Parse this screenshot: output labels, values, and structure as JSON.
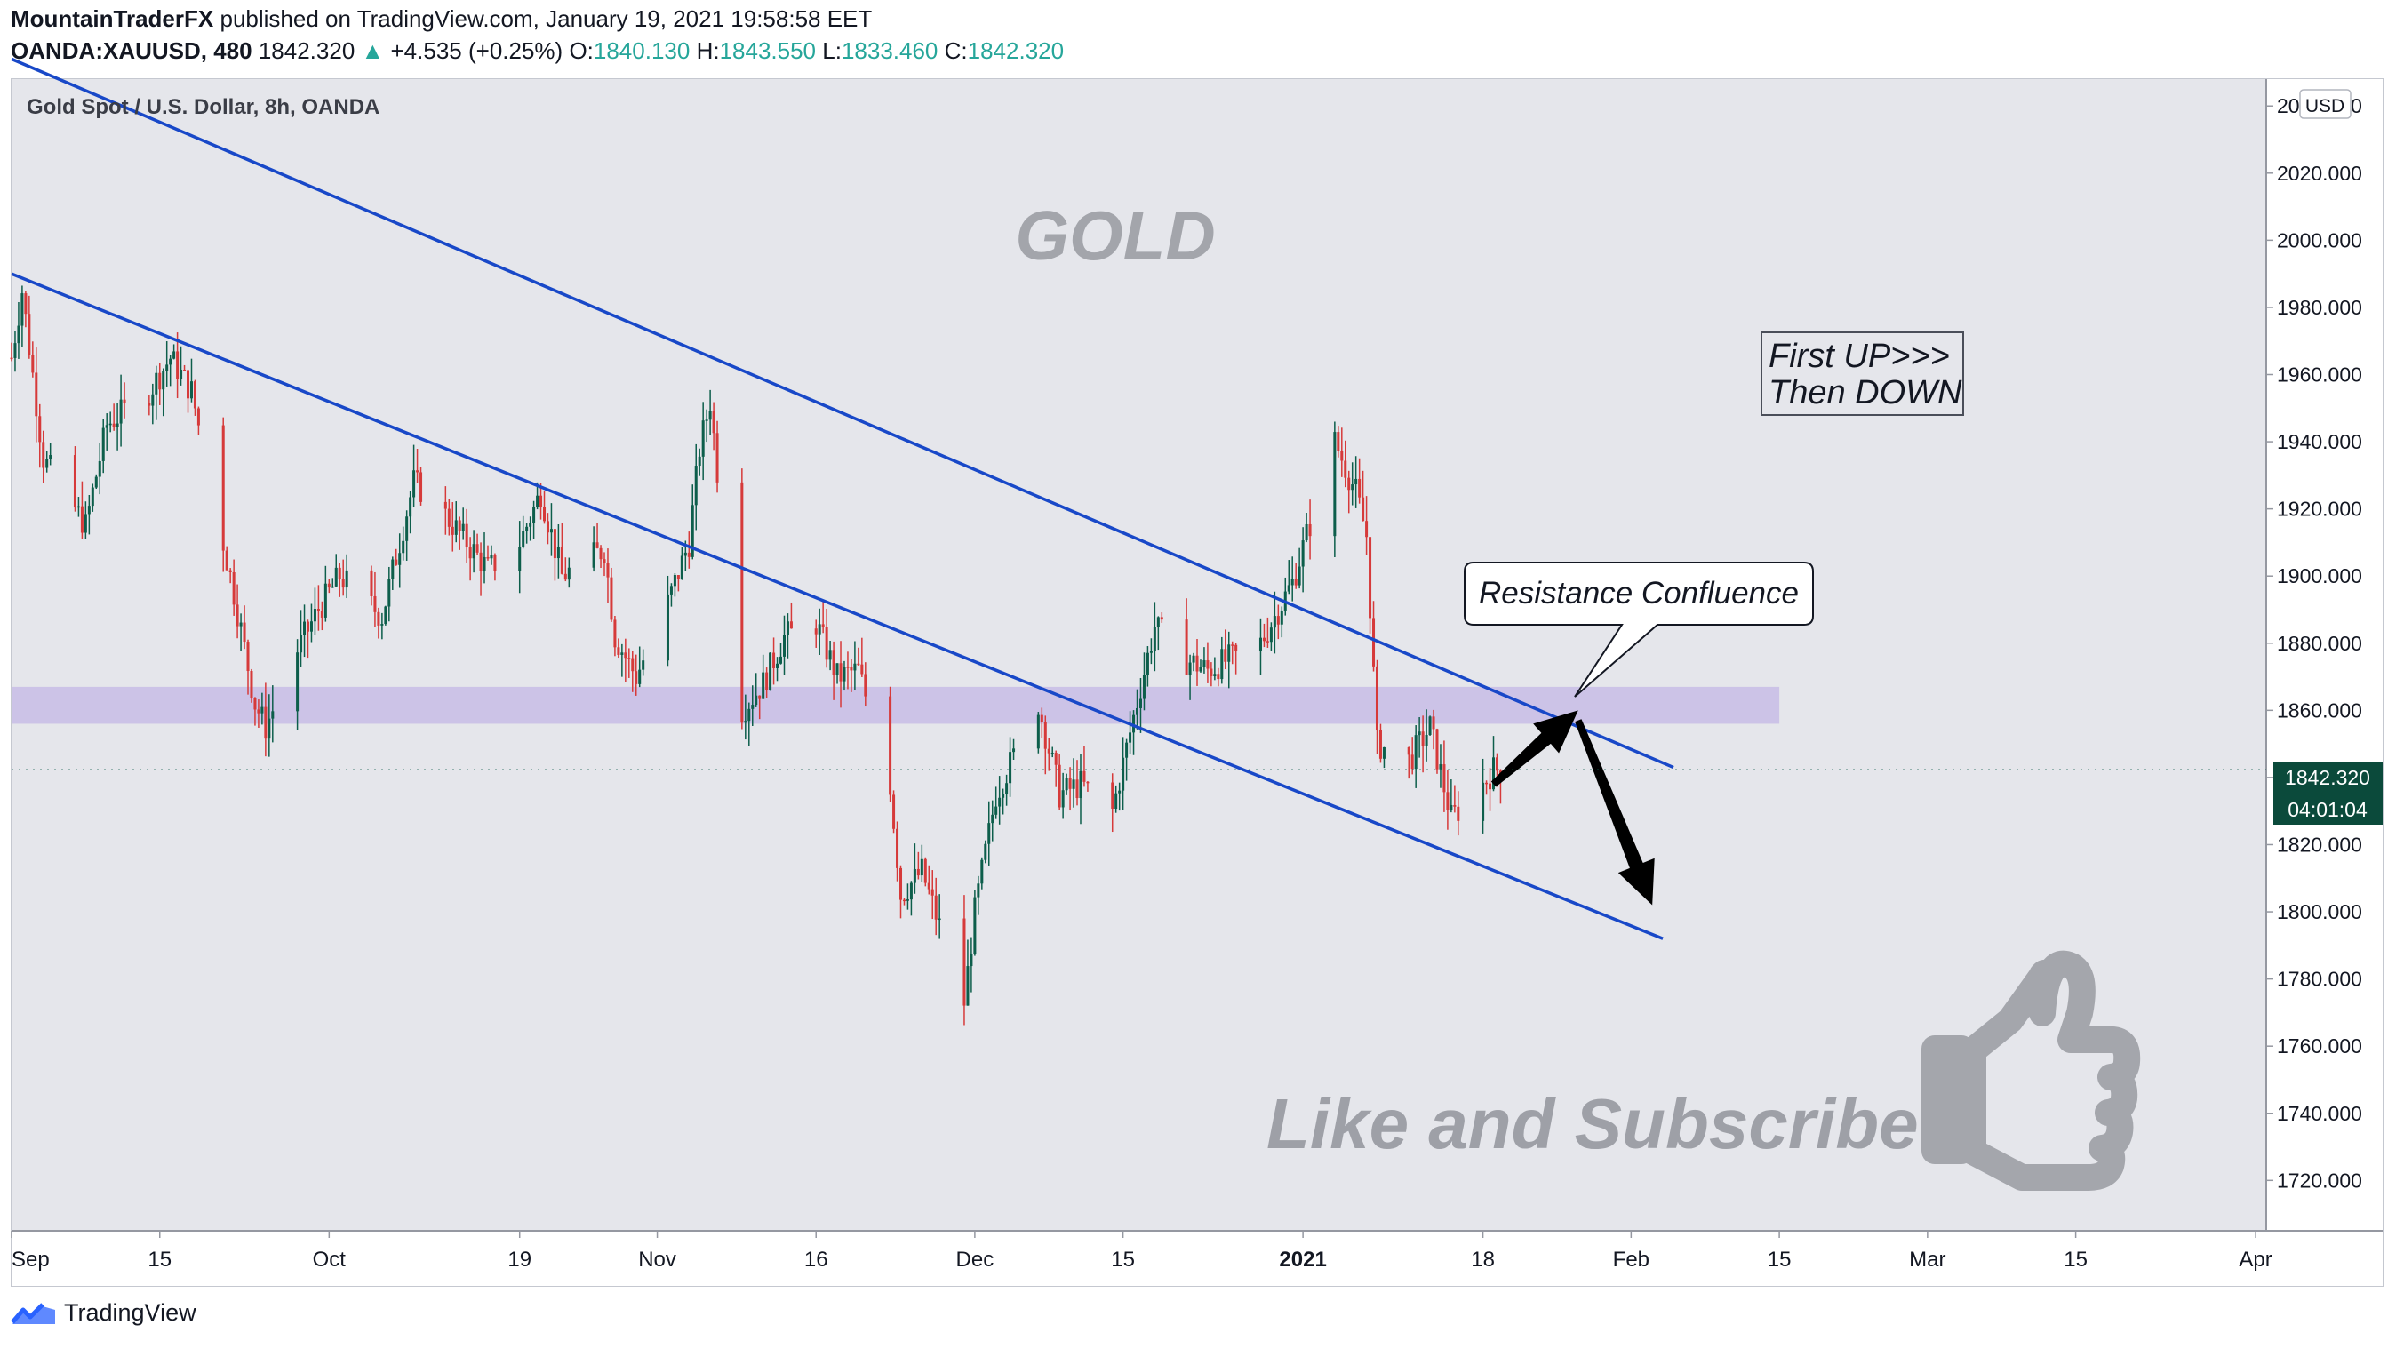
{
  "header": {
    "author": "MountainTraderFX",
    "published_text": "published on TradingView.com, January 19, 2021 19:58:58 EET",
    "symbol": "OANDA:XAUUSD, 480",
    "last": "1842.320",
    "change": "+4.535 (+0.25%)",
    "o_label": "O:",
    "o_value": "1840.130",
    "h_label": "H:",
    "h_value": "1843.550",
    "l_label": "L:",
    "l_value": "1833.460",
    "c_label": "C:",
    "c_value": "1842.320"
  },
  "chart": {
    "legend": "Gold Spot / U.S. Dollar, 8h, OANDA",
    "watermark": "GOLD",
    "currency": "USD",
    "price_tag": "1842.320",
    "countdown": "04:01:04",
    "note_box": [
      "First UP>>>",
      "Then DOWN"
    ],
    "callout": "Resistance Confluence",
    "promo": "Like and Subscribe!"
  },
  "chart_data": {
    "type": "candlestick",
    "title": "Gold Spot / U.S. Dollar, 8h, OANDA",
    "y_axis_ticks": [
      "1720.000",
      "1740.000",
      "1760.000",
      "1780.000",
      "1800.000",
      "1820.000",
      "1840.000",
      "1860.000",
      "1880.000",
      "1900.000",
      "1920.000",
      "1940.000",
      "1960.000",
      "1980.000",
      "2000.000",
      "2020.000",
      "2040.000"
    ],
    "ylim": [
      1705,
      2048
    ],
    "x_axis_ticks": [
      "Sep",
      "15",
      "Oct",
      "19",
      "Nov",
      "16",
      "Dec",
      "15",
      "2021",
      "18",
      "Feb",
      "15",
      "Mar",
      "15",
      "Apr"
    ],
    "xlim": [
      "2020-09-01",
      "2021-04-02"
    ],
    "close_path": [
      [
        "2020-09-01",
        1965
      ],
      [
        "2020-09-02",
        1985
      ],
      [
        "2020-09-04",
        1935
      ],
      [
        "2020-09-08",
        1915
      ],
      [
        "2020-09-10",
        1945
      ],
      [
        "2020-09-14",
        1955
      ],
      [
        "2020-09-16",
        1965
      ],
      [
        "2020-09-18",
        1955
      ],
      [
        "2020-09-21",
        1910
      ],
      [
        "2020-09-22",
        1895
      ],
      [
        "2020-09-24",
        1862
      ],
      [
        "2020-09-25",
        1855
      ],
      [
        "2020-09-28",
        1878
      ],
      [
        "2020-09-30",
        1890
      ],
      [
        "2020-10-02",
        1900
      ],
      [
        "2020-10-06",
        1888
      ],
      [
        "2020-10-09",
        1928
      ],
      [
        "2020-10-12",
        1918
      ],
      [
        "2020-10-16",
        1902
      ],
      [
        "2020-10-19",
        1910
      ],
      [
        "2020-10-21",
        1925
      ],
      [
        "2020-10-23",
        1900
      ],
      [
        "2020-10-27",
        1908
      ],
      [
        "2020-10-28",
        1882
      ],
      [
        "2020-10-30",
        1870
      ],
      [
        "2020-11-02",
        1892
      ],
      [
        "2020-11-04",
        1910
      ],
      [
        "2020-11-05",
        1938
      ],
      [
        "2020-11-06",
        1952
      ],
      [
        "2020-11-09",
        1860
      ],
      [
        "2020-11-11",
        1868
      ],
      [
        "2020-11-13",
        1882
      ],
      [
        "2020-11-16",
        1886
      ],
      [
        "2020-11-18",
        1870
      ],
      [
        "2020-11-20",
        1872
      ],
      [
        "2020-11-23",
        1838
      ],
      [
        "2020-11-24",
        1805
      ],
      [
        "2020-11-26",
        1812
      ],
      [
        "2020-11-30",
        1773
      ],
      [
        "2020-12-01",
        1800
      ],
      [
        "2020-12-03",
        1835
      ],
      [
        "2020-12-07",
        1862
      ],
      [
        "2020-12-09",
        1835
      ],
      [
        "2020-12-11",
        1838
      ],
      [
        "2020-12-14",
        1830
      ],
      [
        "2020-12-16",
        1858
      ],
      [
        "2020-12-18",
        1885
      ],
      [
        "2020-12-21",
        1875
      ],
      [
        "2020-12-23",
        1872
      ],
      [
        "2020-12-28",
        1880
      ],
      [
        "2020-12-31",
        1898
      ],
      [
        "2021-01-04",
        1940
      ],
      [
        "2021-01-06",
        1925
      ],
      [
        "2021-01-07",
        1912
      ],
      [
        "2021-01-08",
        1850
      ],
      [
        "2021-01-11",
        1845
      ],
      [
        "2021-01-13",
        1855
      ],
      [
        "2021-01-15",
        1828
      ],
      [
        "2021-01-18",
        1838
      ],
      [
        "2021-01-19",
        1842.32
      ]
    ],
    "trendlines": [
      {
        "name": "upper channel",
        "points": [
          [
            "2020-09-01",
            2054
          ],
          [
            "2021-02-05",
            1843
          ]
        ]
      },
      {
        "name": "lower channel",
        "points": [
          [
            "2020-09-01",
            1990
          ],
          [
            "2021-02-04",
            1792
          ]
        ]
      }
    ],
    "zone": {
      "name": "resistance zone",
      "y": [
        1856,
        1867
      ],
      "x": [
        "2020-09-01",
        "2021-02-15"
      ]
    },
    "arrows": [
      {
        "from": [
          "2021-01-19",
          1838
        ],
        "to": [
          "2021-01-27",
          1860
        ]
      },
      {
        "from": [
          "2021-01-27",
          1857
        ],
        "to": [
          "2021-02-03",
          1802
        ]
      }
    ],
    "last_price": 1842.32
  }
}
